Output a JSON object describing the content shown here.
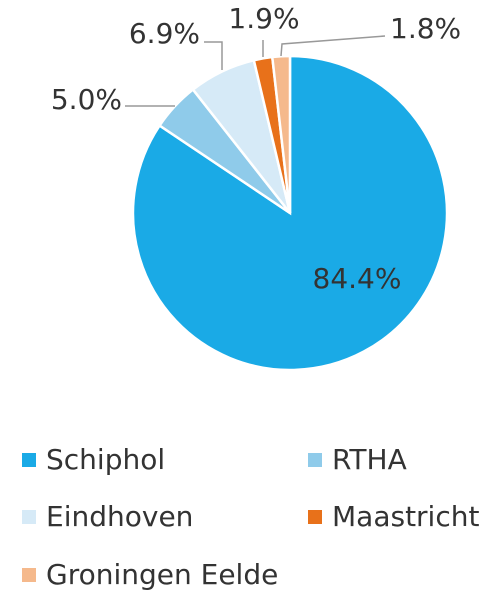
{
  "chart_data": {
    "type": "pie",
    "categories": [
      "Schiphol",
      "RTHA",
      "Eindhoven",
      "Maastricht",
      "Groningen Eelde"
    ],
    "values": [
      84.4,
      5.0,
      6.9,
      1.9,
      1.8
    ],
    "value_labels": [
      "84.4%",
      "5.0%",
      "6.9%",
      "1.9%",
      "1.8%"
    ],
    "colors": [
      "#1aaae6",
      "#8fcbea",
      "#d6eaf7",
      "#e8711a",
      "#f5b98c"
    ]
  }
}
